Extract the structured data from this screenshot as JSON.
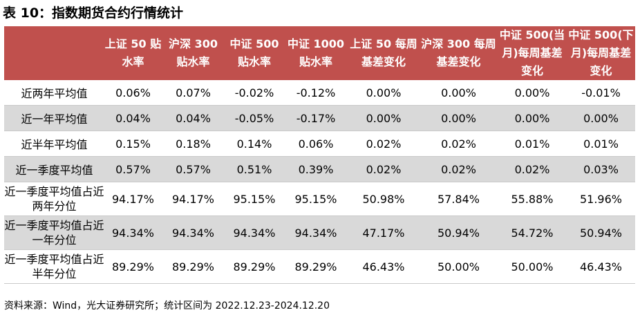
{
  "title": "表 10：指数期货合约行情统计",
  "columns": [
    "",
    "上证 50 贴水率",
    "沪深 300 贴水率",
    "中证 500 贴水率",
    "中证 1000 贴水率",
    "上证 50 每周基差变化",
    "沪深 300 每周基差变化",
    "中证 500(当月)每周基差变化",
    "中证 500(下月)每周基差变化"
  ],
  "rows": [
    {
      "label": "近两年平均值",
      "values": [
        "0.06%",
        "0.07%",
        "-0.02%",
        "-0.12%",
        "0.00%",
        "0.00%",
        "0.00%",
        "-0.01%"
      ]
    },
    {
      "label": "近一年平均值",
      "values": [
        "0.04%",
        "0.04%",
        "-0.05%",
        "-0.17%",
        "0.00%",
        "0.00%",
        "0.00%",
        "0.00%"
      ]
    },
    {
      "label": "近半年平均值",
      "values": [
        "0.15%",
        "0.18%",
        "0.14%",
        "0.06%",
        "0.02%",
        "0.02%",
        "0.01%",
        "0.01%"
      ]
    },
    {
      "label": "近一季度平均值",
      "values": [
        "0.57%",
        "0.57%",
        "0.51%",
        "0.39%",
        "0.02%",
        "0.02%",
        "0.02%",
        "0.03%"
      ]
    },
    {
      "label": "近一季度平均值占近两年分位",
      "values": [
        "94.17%",
        "94.17%",
        "95.15%",
        "95.15%",
        "50.98%",
        "57.84%",
        "55.88%",
        "51.96%"
      ]
    },
    {
      "label": "近一季度平均值占近一年分位",
      "values": [
        "94.34%",
        "94.34%",
        "94.34%",
        "94.34%",
        "47.17%",
        "50.94%",
        "54.72%",
        "50.94%"
      ]
    },
    {
      "label": "近一季度平均值占近半年分位",
      "values": [
        "89.29%",
        "89.29%",
        "89.29%",
        "89.29%",
        "46.43%",
        "50.00%",
        "50.00%",
        "46.43%"
      ]
    }
  ],
  "source": "资料来源：Wind，光大证券研究所；统计区间为 2022.12.23-2024.12.20"
}
